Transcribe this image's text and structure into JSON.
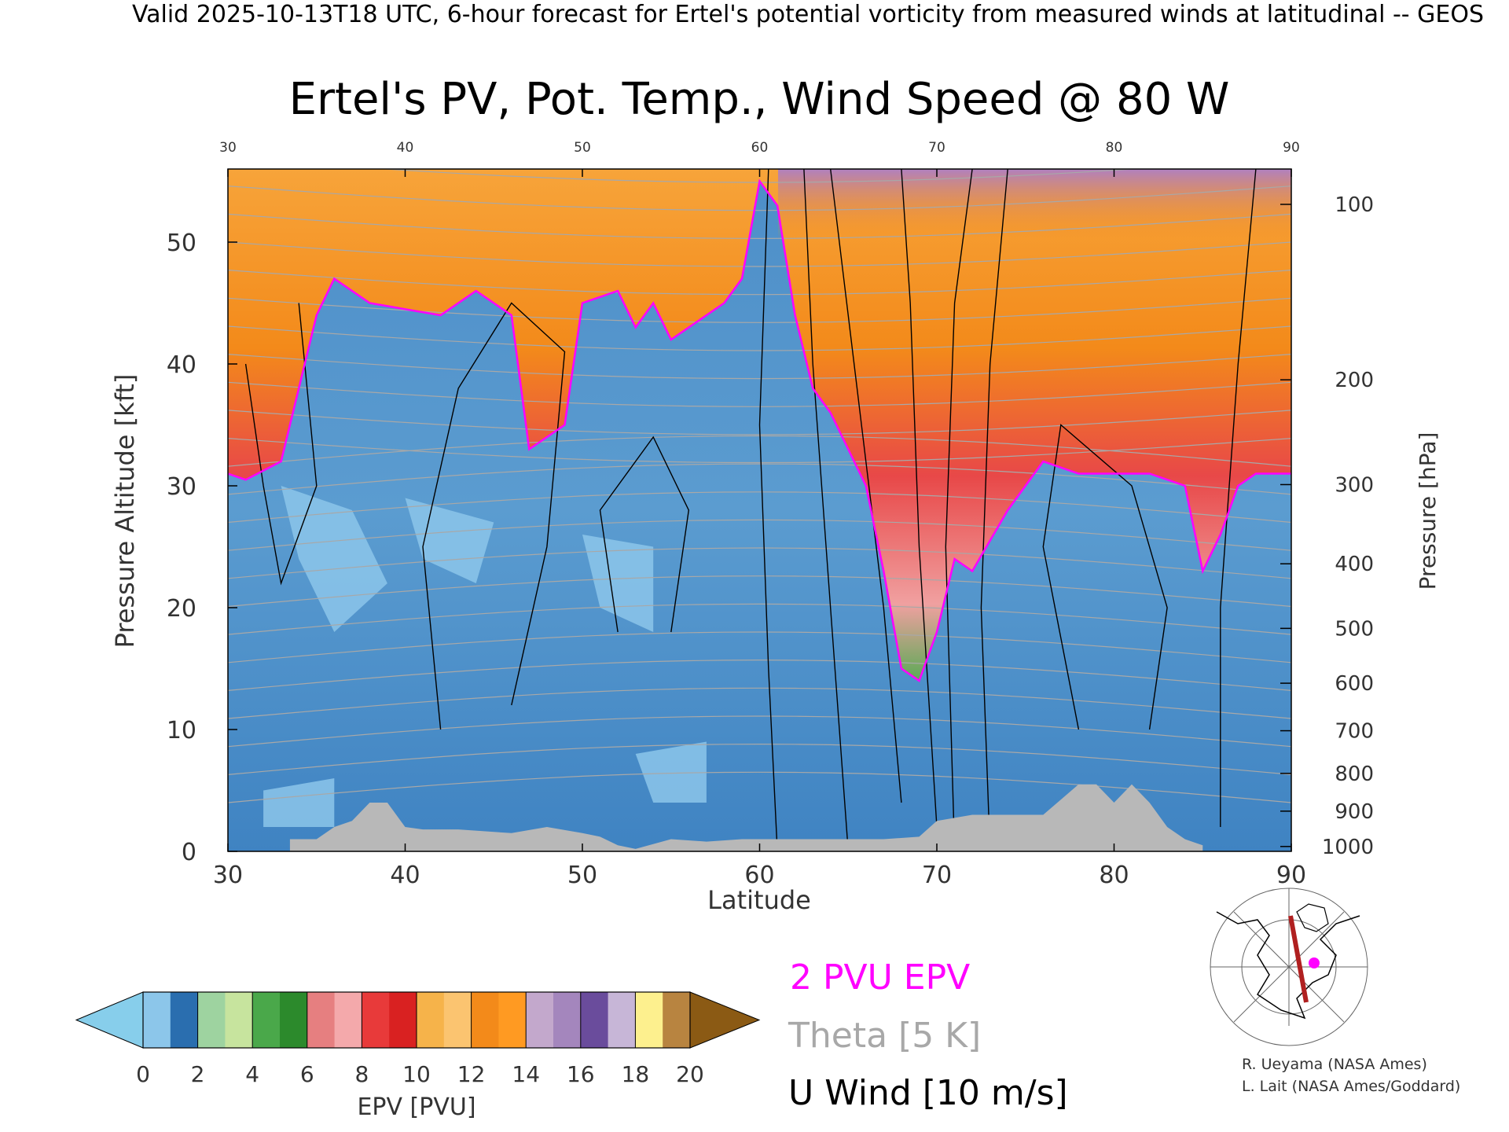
{
  "header": {
    "valid_line": "Valid 2025-10-13T18 UTC, 6-hour forecast for Ertel's potential vorticity from measured winds at latitudinal -- GEOS"
  },
  "chart_data": {
    "type": "heatmap",
    "title": "Ertel's PV, Pot. Temp., Wind Speed @ 80 W",
    "xlabel": "Latitude",
    "ylabel": "Pressure Altitude [kft]",
    "ylabel_right": "Pressure [hPa]",
    "xlim": [
      30,
      90
    ],
    "ylim": [
      0,
      56
    ],
    "x_ticks": [
      30,
      40,
      50,
      60,
      70,
      80,
      90
    ],
    "x_tick_labels": [
      "30",
      "40",
      "50",
      "60",
      "70",
      "80",
      "90"
    ],
    "y_ticks": [
      0,
      10,
      20,
      30,
      40,
      50
    ],
    "y_tick_labels": [
      "0",
      "10",
      "20",
      "30",
      "40",
      "50"
    ],
    "pressure_ticks": [
      {
        "hpa": "100",
        "kft": 53.1
      },
      {
        "hpa": "200",
        "kft": 38.7
      },
      {
        "hpa": "300",
        "kft": 30.1
      },
      {
        "hpa": "400",
        "kft": 23.6
      },
      {
        "hpa": "500",
        "kft": 18.3
      },
      {
        "hpa": "600",
        "kft": 13.8
      },
      {
        "hpa": "700",
        "kft": 9.9
      },
      {
        "hpa": "800",
        "kft": 6.4
      },
      {
        "hpa": "900",
        "kft": 3.3
      },
      {
        "hpa": "1000",
        "kft": 0.4
      }
    ],
    "epv_2pvu_boundary": {
      "lat": [
        30,
        31,
        33,
        35,
        36,
        38,
        40,
        42,
        44,
        45,
        46,
        47,
        48,
        49,
        50,
        52,
        53,
        54,
        55,
        57,
        58,
        59,
        60,
        61,
        62,
        63,
        64,
        65,
        66,
        67,
        68,
        69,
        70,
        71,
        72,
        74,
        76,
        78,
        80,
        82,
        84,
        85,
        86,
        87,
        88,
        89,
        90
      ],
      "kft": [
        31,
        30.5,
        32,
        44,
        47,
        45,
        44.5,
        44,
        46,
        45,
        44,
        33,
        34,
        35,
        45,
        46,
        43,
        45,
        42,
        44,
        45,
        47,
        55,
        53,
        44,
        38,
        36,
        33,
        30,
        23,
        15,
        14,
        18,
        24,
        23,
        28,
        32,
        31,
        31,
        31,
        30,
        23,
        26,
        30,
        31,
        31,
        31
      ]
    },
    "topography": {
      "lat": [
        33.5,
        35,
        36,
        37,
        38,
        39,
        40,
        41,
        43,
        46,
        48,
        50,
        51,
        52,
        53,
        55,
        57,
        59,
        61,
        63,
        65,
        67,
        69,
        70,
        72,
        74,
        76,
        78,
        79,
        80,
        81,
        82,
        83,
        84,
        85
      ],
      "kft": [
        1,
        1,
        2,
        2.5,
        4,
        4,
        2,
        1.8,
        1.8,
        1.5,
        2,
        1.5,
        1.2,
        0.5,
        0.2,
        1,
        0.8,
        1,
        1,
        1,
        1,
        1,
        1.2,
        2.5,
        3,
        3,
        3,
        5.5,
        5.5,
        4,
        5.5,
        4,
        2,
        1,
        0.5
      ]
    },
    "theta_levels": [
      "300",
      "310",
      "320",
      "330",
      "340",
      "350",
      "360",
      "370",
      "380",
      "410",
      "420"
    ],
    "u_wind_levels": [
      "0",
      "10",
      "20",
      "30",
      "40",
      "50"
    ],
    "colorbar": {
      "label": "EPV [PVU]",
      "min": 0,
      "max": 20,
      "step": 1,
      "tick_labels": [
        "0",
        "2",
        "4",
        "6",
        "8",
        "10",
        "12",
        "14",
        "16",
        "18",
        "20"
      ],
      "low_extend_color": "#87ceeb",
      "high_extend_color": "#8b5a14",
      "colors": [
        "#8cc6ea",
        "#2a6eaf",
        "#9ed3a0",
        "#c7e49e",
        "#4aa84a",
        "#2c8a2c",
        "#e67f80",
        "#f4a9ab",
        "#e83a3a",
        "#d92121",
        "#f6b34a",
        "#fbc470",
        "#f38a1a",
        "#ff9a22",
        "#c3a8cc",
        "#a486bd",
        "#6a4c9c",
        "#c7b6d7",
        "#fdf08e",
        "#b88440"
      ]
    },
    "legend": [
      {
        "label": "2 PVU EPV",
        "color": "#ff00ff"
      },
      {
        "label": "Theta [5 K]",
        "color": "#a8a8a8"
      },
      {
        "label": "U Wind [10 m/s]",
        "color": "#000000"
      }
    ],
    "grid": false
  },
  "credits": {
    "line1": "R. Ueyama (NASA Ames)",
    "line2": "L. Lait (NASA Ames/Goddard)"
  }
}
